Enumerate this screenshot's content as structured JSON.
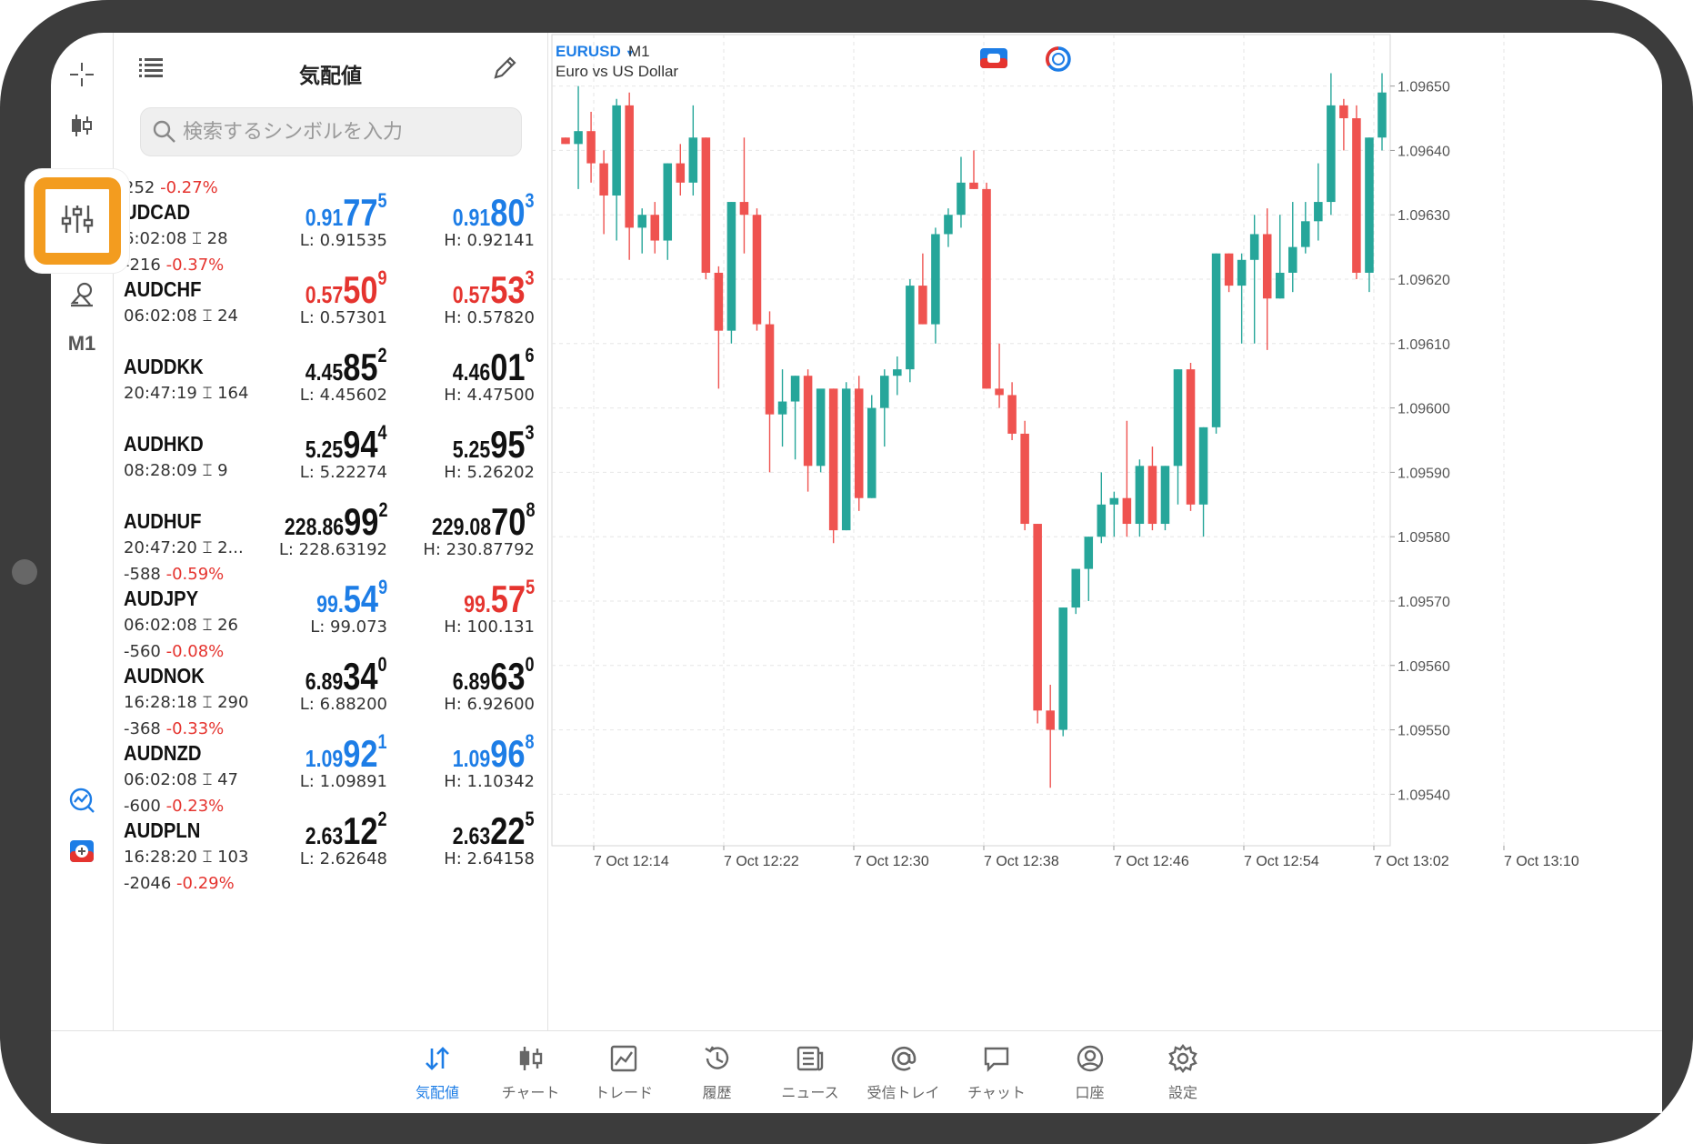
{
  "quotes_panel": {
    "title": "気配値",
    "search_placeholder": "検索するシンボルを入力",
    "rows": [
      {
        "change_points": "252",
        "change_pct": "-0.27%",
        "symbol": "UDCAD",
        "time": "6:02:08",
        "spread": "28",
        "bid": {
          "p1": "0.91",
          "p2": "77",
          "p3": "5",
          "color": "blue"
        },
        "ask": {
          "p1": "0.91",
          "p2": "80",
          "p3": "3",
          "color": "blue"
        },
        "low": "L: 0.91535",
        "high": "H: 0.92141"
      },
      {
        "change_points": "-216",
        "change_pct": "-0.37%",
        "symbol": "AUDCHF",
        "time": "06:02:08",
        "spread": "24",
        "bid": {
          "p1": "0.57",
          "p2": "50",
          "p3": "9",
          "color": "red"
        },
        "ask": {
          "p1": "0.57",
          "p2": "53",
          "p3": "3",
          "color": "red"
        },
        "low": "L: 0.57301",
        "high": "H: 0.57820"
      },
      {
        "change_points": "",
        "change_pct": "",
        "symbol": "AUDDKK",
        "time": "20:47:19",
        "spread": "164",
        "bid": {
          "p1": "4.45",
          "p2": "85",
          "p3": "2",
          "color": "black"
        },
        "ask": {
          "p1": "4.46",
          "p2": "01",
          "p3": "6",
          "color": "black"
        },
        "low": "L: 4.45602",
        "high": "H: 4.47500"
      },
      {
        "change_points": "",
        "change_pct": "",
        "symbol": "AUDHKD",
        "time": "08:28:09",
        "spread": "9",
        "bid": {
          "p1": "5.25",
          "p2": "94",
          "p3": "4",
          "color": "black"
        },
        "ask": {
          "p1": "5.25",
          "p2": "95",
          "p3": "3",
          "color": "black"
        },
        "low": "L: 5.22274",
        "high": "H: 5.26202"
      },
      {
        "change_points": "",
        "change_pct": "",
        "symbol": "AUDHUF",
        "time": "20:47:20",
        "spread": "2...",
        "bid": {
          "p1": "228.86",
          "p2": "99",
          "p3": "2",
          "color": "black"
        },
        "ask": {
          "p1": "229.08",
          "p2": "70",
          "p3": "8",
          "color": "black"
        },
        "low": "L: 228.63192",
        "high": "H: 230.87792"
      },
      {
        "change_points": "-588",
        "change_pct": "-0.59%",
        "symbol": "AUDJPY",
        "time": "06:02:08",
        "spread": "26",
        "bid": {
          "p1": "99.",
          "p2": "54",
          "p3": "9",
          "color": "blue"
        },
        "ask": {
          "p1": "99.",
          "p2": "57",
          "p3": "5",
          "color": "red"
        },
        "low": "L: 99.073",
        "high": "H: 100.131"
      },
      {
        "change_points": "-560",
        "change_pct": "-0.08%",
        "symbol": "AUDNOK",
        "time": "16:28:18",
        "spread": "290",
        "bid": {
          "p1": "6.89",
          "p2": "34",
          "p3": "0",
          "color": "black"
        },
        "ask": {
          "p1": "6.89",
          "p2": "63",
          "p3": "0",
          "color": "black"
        },
        "low": "L: 6.88200",
        "high": "H: 6.92600"
      },
      {
        "change_points": "-368",
        "change_pct": "-0.33%",
        "symbol": "AUDNZD",
        "time": "06:02:08",
        "spread": "47",
        "bid": {
          "p1": "1.09",
          "p2": "92",
          "p3": "1",
          "color": "blue"
        },
        "ask": {
          "p1": "1.09",
          "p2": "96",
          "p3": "8",
          "color": "blue"
        },
        "low": "L: 1.09891",
        "high": "H: 1.10342"
      },
      {
        "change_points": "-600",
        "change_pct": "-0.23%",
        "symbol": "AUDPLN",
        "time": "16:28:20",
        "spread": "103",
        "bid": {
          "p1": "2.63",
          "p2": "12",
          "p3": "2",
          "color": "black"
        },
        "ask": {
          "p1": "2.63",
          "p2": "22",
          "p3": "5",
          "color": "black"
        },
        "low": "L: 2.62648",
        "high": "H: 2.64158"
      },
      {
        "change_points": "-2046",
        "change_pct": "-0.29%",
        "symbol": "",
        "time": "",
        "spread": "",
        "bid": {
          "p1": "",
          "p2": "",
          "p3": "",
          "color": "black"
        },
        "ask": {
          "p1": "",
          "p2": "",
          "p3": "",
          "color": "black"
        },
        "low": "",
        "high": ""
      }
    ]
  },
  "tool_rail": {
    "items": [
      "crosshair-icon",
      "candles-icon",
      "indicators-icon",
      "objects-icon",
      "timeframe-label"
    ],
    "timeframe": "M1",
    "bottom_items": [
      "trade-analytics-icon",
      "one-click-icon"
    ]
  },
  "chart": {
    "symbol": "EURUSD",
    "timeframe": "M1",
    "description": "Euro vs US Dollar",
    "colors": {
      "bull": "#26a69a",
      "bear": "#ef5350",
      "grid": "#e6e6e6"
    }
  },
  "chart_data": {
    "type": "candlestick",
    "y_ticks": [
      "1.09650",
      "1.09640",
      "1.09630",
      "1.09620",
      "1.09610",
      "1.09600",
      "1.09590",
      "1.09580",
      "1.09570",
      "1.09560",
      "1.09550",
      "1.09540"
    ],
    "x_ticks": [
      "7 Oct 12:14",
      "7 Oct 12:22",
      "7 Oct 12:30",
      "7 Oct 12:38",
      "7 Oct 12:46",
      "7 Oct 12:54",
      "7 Oct 13:02",
      "7 Oct 13:10"
    ],
    "ylim": [
      1.09532,
      1.09658
    ],
    "candles": [
      [
        1.09642,
        1.09642,
        1.09641,
        1.09641
      ],
      [
        1.09641,
        1.0965,
        1.09634,
        1.09643
      ],
      [
        1.09643,
        1.09646,
        1.09635,
        1.09638
      ],
      [
        1.09638,
        1.0964,
        1.09627,
        1.09633
      ],
      [
        1.09633,
        1.09648,
        1.09626,
        1.09647
      ],
      [
        1.09647,
        1.09649,
        1.09623,
        1.09628
      ],
      [
        1.09628,
        1.09631,
        1.09624,
        1.0963
      ],
      [
        1.0963,
        1.09632,
        1.09624,
        1.09626
      ],
      [
        1.09626,
        1.09638,
        1.09623,
        1.09638
      ],
      [
        1.09638,
        1.09641,
        1.09633,
        1.09635
      ],
      [
        1.09635,
        1.09647,
        1.09633,
        1.09642
      ],
      [
        1.09642,
        1.09642,
        1.0962,
        1.09621
      ],
      [
        1.09621,
        1.09622,
        1.09603,
        1.09612
      ],
      [
        1.09612,
        1.09632,
        1.0961,
        1.09632
      ],
      [
        1.09632,
        1.09642,
        1.09624,
        1.0963
      ],
      [
        1.0963,
        1.09631,
        1.09612,
        1.09613
      ],
      [
        1.09613,
        1.09615,
        1.0959,
        1.09599
      ],
      [
        1.09599,
        1.09606,
        1.09594,
        1.09601
      ],
      [
        1.09601,
        1.09605,
        1.09592,
        1.09605
      ],
      [
        1.09605,
        1.09606,
        1.09587,
        1.09591
      ],
      [
        1.09591,
        1.09602,
        1.0959,
        1.09603
      ],
      [
        1.09603,
        1.09603,
        1.09579,
        1.09581
      ],
      [
        1.09581,
        1.09604,
        1.09581,
        1.09603
      ],
      [
        1.09603,
        1.09605,
        1.09584,
        1.09586
      ],
      [
        1.09586,
        1.09602,
        1.09586,
        1.096
      ],
      [
        1.096,
        1.09606,
        1.09594,
        1.09605
      ],
      [
        1.09605,
        1.09608,
        1.09602,
        1.09606
      ],
      [
        1.09606,
        1.0962,
        1.09604,
        1.09619
      ],
      [
        1.09619,
        1.09624,
        1.09613,
        1.09613
      ],
      [
        1.09613,
        1.09628,
        1.0961,
        1.09627
      ],
      [
        1.09627,
        1.09631,
        1.09625,
        1.0963
      ],
      [
        1.0963,
        1.09639,
        1.09628,
        1.09635
      ],
      [
        1.09635,
        1.0964,
        1.09634,
        1.09634
      ],
      [
        1.09634,
        1.09635,
        1.09603,
        1.09603
      ],
      [
        1.09603,
        1.0961,
        1.096,
        1.09602
      ],
      [
        1.09602,
        1.09604,
        1.09595,
        1.09596
      ],
      [
        1.09596,
        1.09598,
        1.09581,
        1.09582
      ],
      [
        1.09582,
        1.09582,
        1.09551,
        1.09553
      ],
      [
        1.09553,
        1.09557,
        1.09541,
        1.0955
      ],
      [
        1.0955,
        1.09569,
        1.09549,
        1.09569
      ],
      [
        1.09569,
        1.09575,
        1.09568,
        1.09575
      ],
      [
        1.09575,
        1.0958,
        1.0957,
        1.0958
      ],
      [
        1.0958,
        1.0959,
        1.09579,
        1.09585
      ],
      [
        1.09585,
        1.09587,
        1.0958,
        1.09586
      ],
      [
        1.09586,
        1.09598,
        1.0958,
        1.09582
      ],
      [
        1.09582,
        1.09592,
        1.0958,
        1.09591
      ],
      [
        1.09591,
        1.09594,
        1.09581,
        1.09582
      ],
      [
        1.09582,
        1.09591,
        1.09581,
        1.09591
      ],
      [
        1.09591,
        1.09606,
        1.09585,
        1.09606
      ],
      [
        1.09606,
        1.09607,
        1.09584,
        1.09585
      ],
      [
        1.09585,
        1.09597,
        1.0958,
        1.09597
      ],
      [
        1.09597,
        1.09624,
        1.09596,
        1.09624
      ],
      [
        1.09624,
        1.09624,
        1.09618,
        1.09619
      ],
      [
        1.09619,
        1.09624,
        1.0961,
        1.09623
      ],
      [
        1.09623,
        1.0963,
        1.0961,
        1.09627
      ],
      [
        1.09627,
        1.09631,
        1.09609,
        1.09617
      ],
      [
        1.09617,
        1.0963,
        1.09617,
        1.09621
      ],
      [
        1.09621,
        1.09632,
        1.09618,
        1.09625
      ],
      [
        1.09625,
        1.09632,
        1.09624,
        1.09629
      ],
      [
        1.09629,
        1.09638,
        1.09626,
        1.09632
      ],
      [
        1.09632,
        1.09652,
        1.0963,
        1.09647
      ],
      [
        1.09647,
        1.09648,
        1.0964,
        1.09645
      ],
      [
        1.09645,
        1.09647,
        1.0962,
        1.09621
      ],
      [
        1.09621,
        1.09642,
        1.09618,
        1.09642
      ],
      [
        1.09642,
        1.09652,
        1.0964,
        1.09649
      ]
    ]
  },
  "tab_bar": {
    "tabs": [
      {
        "name": "quotes",
        "label": "気配値",
        "active": true
      },
      {
        "name": "chart",
        "label": "チャート",
        "active": false
      },
      {
        "name": "trade",
        "label": "トレード",
        "active": false
      },
      {
        "name": "history",
        "label": "履歴",
        "active": false
      },
      {
        "name": "news",
        "label": "ニュース",
        "active": false
      },
      {
        "name": "inbox",
        "label": "受信トレイ",
        "active": false
      },
      {
        "name": "chat",
        "label": "チャット",
        "active": false
      },
      {
        "name": "account",
        "label": "口座",
        "active": false
      },
      {
        "name": "settings",
        "label": "設定",
        "active": false
      }
    ]
  }
}
